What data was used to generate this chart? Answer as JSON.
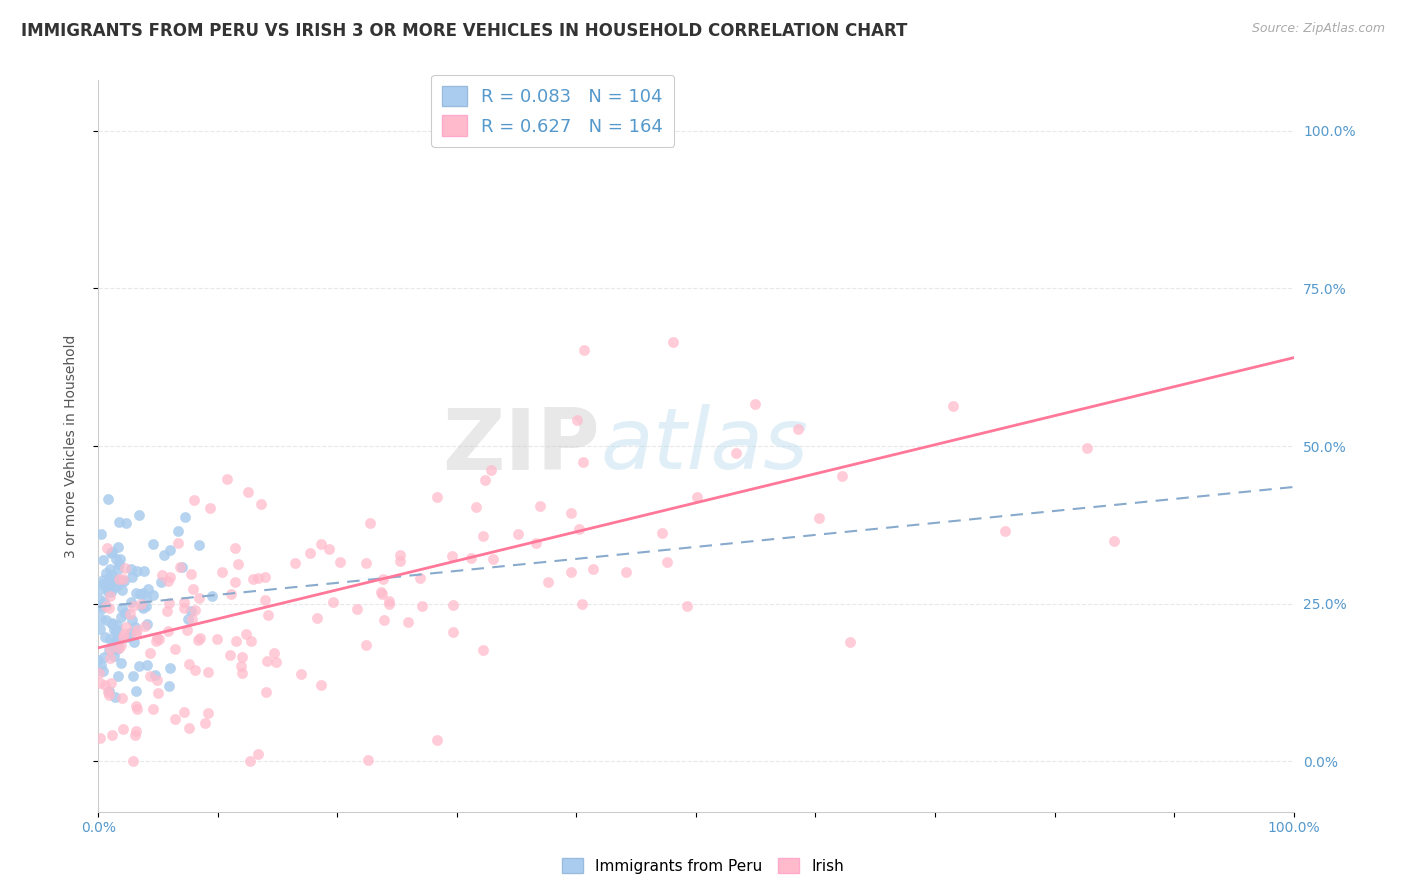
{
  "title": "IMMIGRANTS FROM PERU VS IRISH 3 OR MORE VEHICLES IN HOUSEHOLD CORRELATION CHART",
  "source": "Source: ZipAtlas.com",
  "ylabel": "3 or more Vehicles in Household",
  "xlim": [
    0.0,
    1.0
  ],
  "ylim": [
    -0.08,
    1.08
  ],
  "blue_R": 0.083,
  "blue_N": 104,
  "pink_R": 0.627,
  "pink_N": 164,
  "blue_color": "#aaccee",
  "pink_color": "#ffbbcc",
  "blue_line_color": "#88aacc",
  "pink_line_color": "#ff7799",
  "legend_blue_label": "R = 0.083   N = 104",
  "legend_pink_label": "R = 0.627   N = 164",
  "bottom_legend_blue": "Immigrants from Peru",
  "bottom_legend_pink": "Irish",
  "watermark_zip": "ZIP",
  "watermark_atlas": "atlas",
  "title_fontsize": 12,
  "axis_label_fontsize": 10,
  "tick_fontsize": 10,
  "background_color": "#ffffff",
  "grid_color": "#e8e8e8",
  "seed": 7,
  "ytick_vals": [
    0.0,
    0.25,
    0.5,
    0.75,
    1.0
  ],
  "ytick_labels": [
    "0.0%",
    "25.0%",
    "50.0%",
    "75.0%",
    "100.0%"
  ],
  "blue_line_intercept": 0.245,
  "blue_line_slope": 0.19,
  "pink_line_intercept": 0.18,
  "pink_line_slope": 0.46
}
